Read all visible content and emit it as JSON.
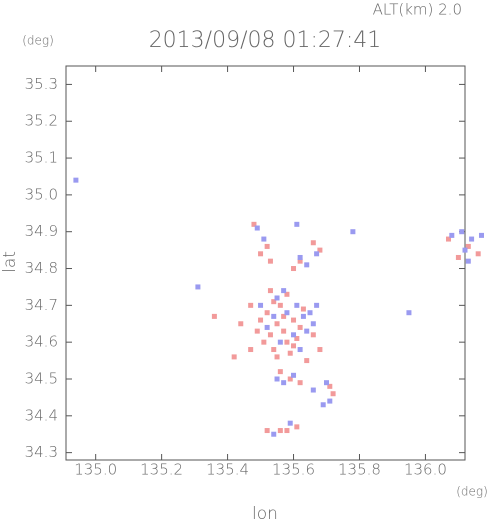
{
  "chart_data": {
    "type": "scatter",
    "title": "2013/09/08 01:27:41",
    "subtitle": "ALT(km) 2.0",
    "x_label": "lon",
    "y_label": "lat",
    "x_unit": "(deg)",
    "y_unit": "(deg)",
    "xlim": [
      134.91,
      136.12
    ],
    "ylim": [
      34.28,
      35.35
    ],
    "xticks": [
      {
        "value": 135,
        "label": "135.0"
      },
      135.2,
      135.4,
      135.6,
      135.8,
      {
        "value": 136,
        "label": "136.0"
      }
    ],
    "yticks": [
      34.3,
      34.4,
      34.5,
      34.6,
      34.7,
      34.8,
      34.9,
      {
        "value": 35,
        "label": "35.0"
      },
      35.1,
      35.2,
      35.3
    ],
    "series": [
      {
        "color": "#f29a9a",
        "x": [
          135.55,
          135.57,
          135.53,
          135.6,
          135.58,
          135.52,
          135.56,
          135.62,
          135.54,
          135.59,
          135.5,
          135.61,
          135.55,
          135.57,
          135.63,
          135.51,
          135.49,
          135.6,
          135.54,
          135.58,
          135.66,
          135.47,
          135.44,
          135.56,
          135.59,
          135.62,
          135.71,
          135.72,
          135.52,
          135.5,
          135.53,
          135.48,
          135.62,
          135.6,
          135.66,
          135.68,
          136.07,
          136.1,
          136.13,
          136.16,
          135.58,
          135.56,
          135.52,
          135.61,
          135.42,
          135.47,
          135.64,
          135.68,
          135.36,
          135.53
        ],
        "y": [
          34.65,
          34.63,
          34.62,
          34.66,
          34.6,
          34.68,
          34.7,
          34.64,
          34.58,
          34.57,
          34.66,
          34.61,
          34.56,
          34.67,
          34.69,
          34.6,
          34.63,
          34.59,
          34.71,
          34.73,
          34.62,
          34.58,
          34.65,
          34.52,
          34.5,
          34.49,
          34.48,
          34.46,
          34.86,
          34.84,
          34.82,
          34.92,
          34.82,
          34.8,
          34.87,
          34.85,
          34.88,
          34.83,
          34.86,
          34.84,
          34.36,
          34.36,
          34.36,
          34.37,
          34.56,
          34.7,
          34.55,
          34.58,
          34.67,
          34.74
        ]
      },
      {
        "color": "#9a9af0",
        "x": [
          135.63,
          135.65,
          135.61,
          135.57,
          135.55,
          135.66,
          135.58,
          135.52,
          135.54,
          135.6,
          135.62,
          135.56,
          135.5,
          135.67,
          135.64,
          135.7,
          135.71,
          135.69,
          135.66,
          135.57,
          135.55,
          135.6,
          135.49,
          135.51,
          135.61,
          135.62,
          135.64,
          135.67,
          136.08,
          136.11,
          136.14,
          136.17,
          136.12,
          136.13,
          135.31,
          134.94,
          135.59,
          135.54,
          135.78,
          135.95
        ],
        "y": [
          34.67,
          34.68,
          34.7,
          34.74,
          34.72,
          34.65,
          34.68,
          34.64,
          34.67,
          34.62,
          34.58,
          34.6,
          34.7,
          34.7,
          34.63,
          34.49,
          34.44,
          34.43,
          34.47,
          34.49,
          34.5,
          34.51,
          34.91,
          34.88,
          34.92,
          34.83,
          34.81,
          34.84,
          34.89,
          34.9,
          34.88,
          34.89,
          34.85,
          34.82,
          34.75,
          35.04,
          34.38,
          34.35,
          34.9,
          34.68
        ]
      }
    ]
  }
}
